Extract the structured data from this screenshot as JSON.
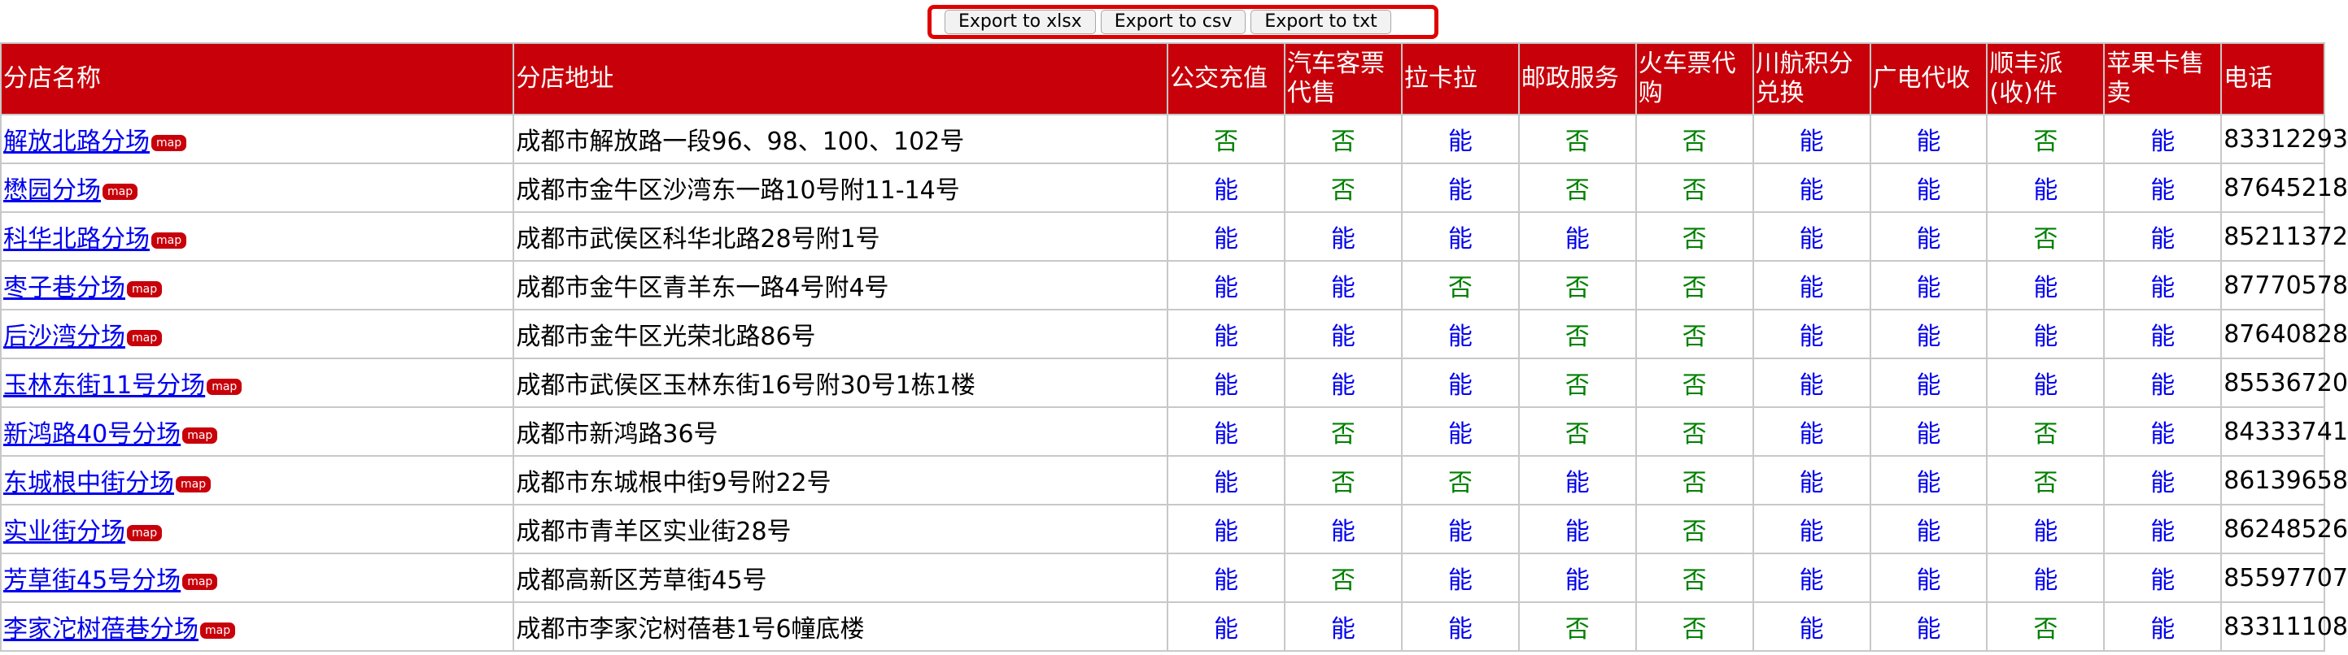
{
  "toolbar": {
    "export_buttons": [
      "Export to xlsx",
      "Export to csv",
      "Export to txt"
    ]
  },
  "colors": {
    "header_bg": "#c8000a",
    "yes_text": "#0000ee",
    "no_text": "#008000",
    "highlight_border": "#e00000"
  },
  "table": {
    "headers": [
      "分店名称",
      "分店地址",
      "公交充值",
      "汽车客票代售",
      "拉卡拉",
      "邮政服务",
      "火车票代购",
      "川航积分兑换",
      "广电代收",
      "顺丰派(收)件",
      "苹果卡售卖",
      "电话"
    ],
    "map_badge": "map",
    "rows": [
      {
        "name": "解放北路分场",
        "address": "成都市解放路一段96、98、100、102号",
        "services": [
          "否",
          "否",
          "能",
          "否",
          "否",
          "能",
          "能",
          "否",
          "能"
        ],
        "phone": "83312293"
      },
      {
        "name": "懋园分场",
        "address": "成都市金牛区沙湾东一路10号附11-14号",
        "services": [
          "能",
          "否",
          "能",
          "否",
          "否",
          "能",
          "能",
          "能",
          "能"
        ],
        "phone": "87645218"
      },
      {
        "name": "科华北路分场",
        "address": "成都市武侯区科华北路28号附1号",
        "services": [
          "能",
          "能",
          "能",
          "能",
          "否",
          "能",
          "能",
          "否",
          "能"
        ],
        "phone": "85211372"
      },
      {
        "name": "枣子巷分场",
        "address": "成都市金牛区青羊东一路4号附4号",
        "services": [
          "能",
          "能",
          "否",
          "否",
          "否",
          "能",
          "能",
          "能",
          "能"
        ],
        "phone": "87770578"
      },
      {
        "name": "后沙湾分场",
        "address": "成都市金牛区光荣北路86号",
        "services": [
          "能",
          "能",
          "能",
          "否",
          "否",
          "能",
          "能",
          "能",
          "能"
        ],
        "phone": "87640828"
      },
      {
        "name": "玉林东街11号分场",
        "address": "成都市武侯区玉林东街16号附30号1栋1楼",
        "services": [
          "能",
          "能",
          "能",
          "否",
          "否",
          "能",
          "能",
          "能",
          "能"
        ],
        "phone": "85536720"
      },
      {
        "name": "新鸿路40号分场",
        "address": "成都市新鸿路36号",
        "services": [
          "能",
          "否",
          "能",
          "否",
          "否",
          "能",
          "能",
          "否",
          "能"
        ],
        "phone": "84333741"
      },
      {
        "name": "东城根中街分场",
        "address": "成都市东城根中街9号附22号",
        "services": [
          "能",
          "否",
          "否",
          "能",
          "否",
          "能",
          "能",
          "否",
          "能"
        ],
        "phone": "86139658"
      },
      {
        "name": "实业街分场",
        "address": "成都市青羊区实业街28号",
        "services": [
          "能",
          "能",
          "能",
          "能",
          "否",
          "能",
          "能",
          "能",
          "能"
        ],
        "phone": "86248526"
      },
      {
        "name": "芳草街45号分场",
        "address": "成都高新区芳草街45号",
        "services": [
          "能",
          "否",
          "能",
          "能",
          "否",
          "能",
          "能",
          "能",
          "能"
        ],
        "phone": "85597707"
      },
      {
        "name": "李家沱树蓓巷分场",
        "address": "成都市李家沱树蓓巷1号6幢底楼",
        "services": [
          "能",
          "能",
          "能",
          "否",
          "否",
          "能",
          "能",
          "否",
          "能"
        ],
        "phone": "83311108"
      }
    ]
  }
}
